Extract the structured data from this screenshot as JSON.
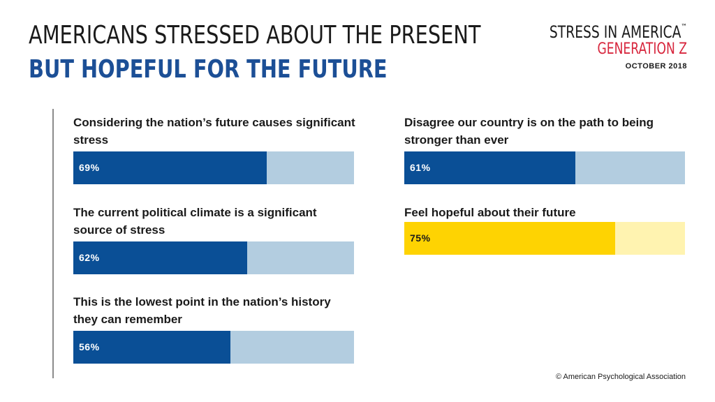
{
  "header": {
    "title_line1": "AMERICANS STRESSED ABOUT THE PRESENT",
    "title_line2": "BUT HOPEFUL FOR THE FUTURE"
  },
  "brand": {
    "name": "STRESS IN AMERICA",
    "trademark": "™",
    "subtitle": "GENERATION Z",
    "date": "OCTOBER 2018"
  },
  "colors": {
    "blue": "#0a4f96",
    "blue_light": "#b3cde0",
    "yellow": "#fed302",
    "yellow_light": "#fff3b0",
    "title_blue": "#1c4f96",
    "brand_red": "#d7263d"
  },
  "chart_data": {
    "type": "bar",
    "orientation": "horizontal",
    "unit": "%",
    "xlim": [
      0,
      100
    ],
    "bars": [
      {
        "label": "Considering the nation’s future causes significant stress",
        "value": 69,
        "value_label": "69%",
        "color": "blue"
      },
      {
        "label": "The current political climate is a significant source of stress",
        "value": 62,
        "value_label": "62%",
        "color": "blue"
      },
      {
        "label": "This is the lowest point in the nation’s history they can remember",
        "value": 56,
        "value_label": "56%",
        "color": "blue"
      },
      {
        "label": "Disagree our country is on the path to being stronger than ever",
        "value": 61,
        "value_label": "61%",
        "color": "blue"
      },
      {
        "label": "Feel hopeful about their future",
        "value": 75,
        "value_label": "75%",
        "color": "yellow"
      }
    ]
  },
  "footer": {
    "copyright": "© American Psychological Association"
  }
}
